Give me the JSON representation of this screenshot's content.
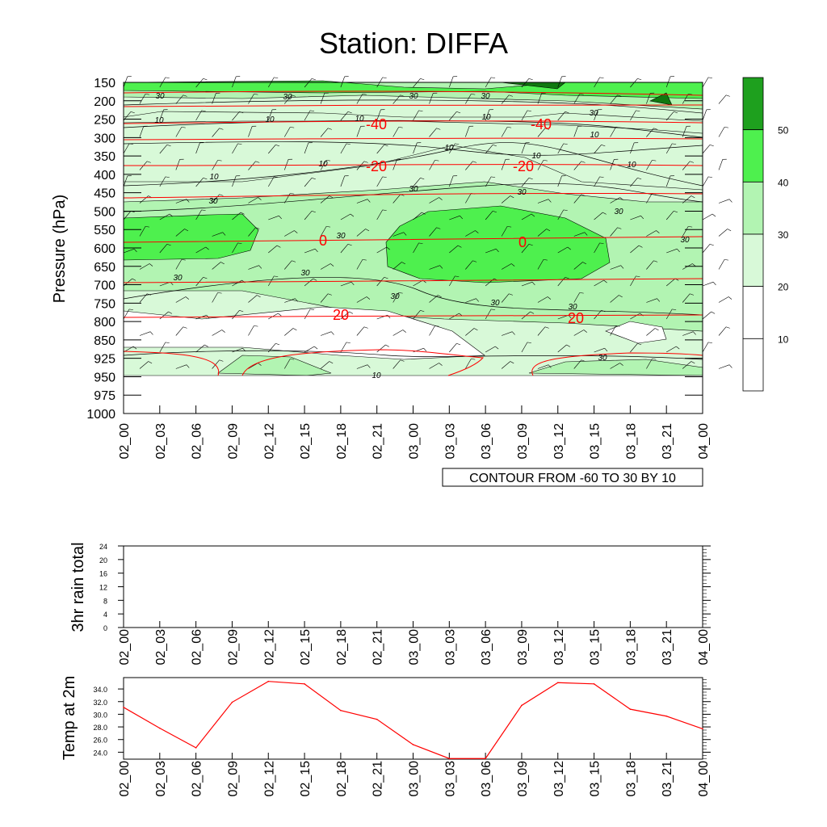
{
  "title": "Station: DIFFA",
  "colors": {
    "shade_10": "#ffffff",
    "shade_20": "#d8f9d8",
    "shade_30": "#b2f4b2",
    "shade_40": "#4ef04e",
    "shade_50": "#1ea01e",
    "shade_60": "#107810",
    "temp_contour": "#ff0000",
    "wind_contour": "#000000",
    "temp_line": "#ff0000"
  },
  "chart_data": [
    {
      "type": "heatmap",
      "title": "Station: DIFFA",
      "ylabel": "Pressure (hPa)",
      "xlabel": "",
      "x_tick_labels": [
        "02_00",
        "02_03",
        "02_06",
        "02_09",
        "02_12",
        "02_15",
        "02_18",
        "02_21",
        "03_00",
        "03_03",
        "03_06",
        "03_09",
        "03_12",
        "03_15",
        "03_18",
        "03_21",
        "04_00"
      ],
      "y_tick_labels": [
        "150",
        "200",
        "250",
        "300",
        "350",
        "400",
        "450",
        "500",
        "550",
        "600",
        "650",
        "700",
        "750",
        "800",
        "850",
        "925",
        "950",
        "975",
        "1000"
      ],
      "wind_speed_levels": [
        10,
        20,
        30,
        40,
        50
      ],
      "colorbar_labels": [
        "10",
        "20",
        "30",
        "40",
        "50"
      ],
      "wind_speed_contour_labels": [
        "30",
        "30",
        "30",
        "30",
        "30",
        "10",
        "10",
        "10",
        "10",
        "10",
        "10",
        "10",
        "10",
        "10",
        "30",
        "30",
        "30",
        "30",
        "30",
        "30",
        "30",
        "30",
        "30",
        "30",
        "10"
      ],
      "temperature_contours": [
        {
          "value": -40,
          "label": "-40"
        },
        {
          "value": -20,
          "label": "-20"
        },
        {
          "value": 0,
          "label": "0"
        },
        {
          "value": 20,
          "label": "20"
        }
      ],
      "contour_info": "CONTOUR FROM -60 TO 30 BY 10"
    },
    {
      "type": "bar",
      "ylabel": "3hr rain total",
      "categories": [
        "02_00",
        "02_03",
        "02_06",
        "02_09",
        "02_12",
        "02_15",
        "02_18",
        "02_21",
        "03_00",
        "03_03",
        "03_06",
        "03_09",
        "03_12",
        "03_15",
        "03_18",
        "03_21",
        "04_00"
      ],
      "values": [
        0,
        0,
        0,
        0,
        0,
        0,
        0,
        0,
        0,
        0,
        0,
        0,
        0,
        0,
        0,
        0,
        0
      ],
      "y_tick_labels": [
        "0",
        "4",
        "8",
        "12",
        "16",
        "20",
        "24"
      ],
      "ylim": [
        0,
        24
      ]
    },
    {
      "type": "line",
      "ylabel": "Temp at 2m",
      "categories": [
        "02_00",
        "02_03",
        "02_06",
        "02_09",
        "02_12",
        "02_15",
        "02_18",
        "02_21",
        "03_00",
        "03_03",
        "03_06",
        "03_09",
        "03_12",
        "03_15",
        "03_18",
        "03_21",
        "04_00"
      ],
      "values": [
        31.1,
        27.8,
        24.7,
        31.9,
        35.2,
        34.8,
        30.6,
        29.2,
        25.2,
        23.0,
        23.0,
        31.4,
        35.0,
        34.8,
        30.8,
        29.7,
        27.7
      ],
      "y_tick_labels": [
        "24.0",
        "26.0",
        "28.0",
        "30.0",
        "32.0",
        "34.0"
      ],
      "ylim": [
        22.9,
        35.8
      ]
    }
  ]
}
